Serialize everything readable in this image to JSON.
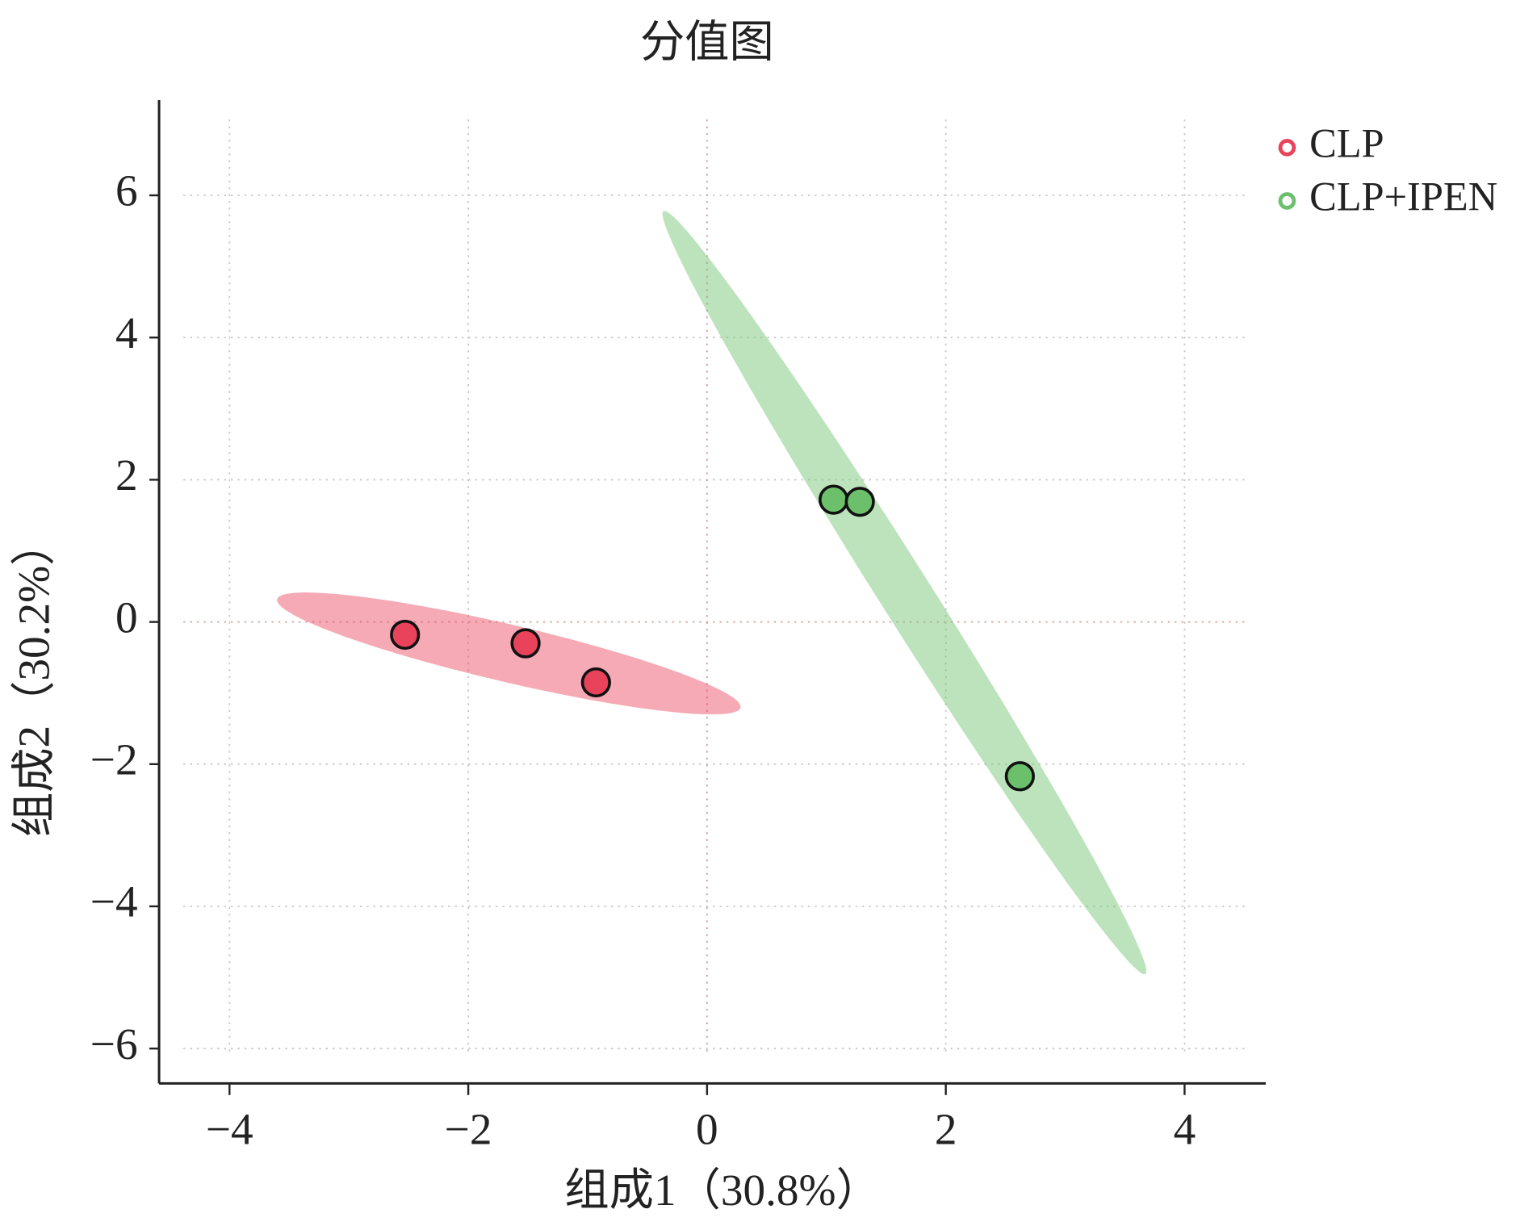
{
  "chart_data": {
    "type": "scatter",
    "title": "分值图",
    "xlabel": "组成1（30.8%）",
    "ylabel": "组成2（30.2%）",
    "xlim": [
      -4.59,
      4.68
    ],
    "ylim": [
      -6.49,
      7.34
    ],
    "xticks": [
      {
        "value": -4,
        "label": "−4"
      },
      {
        "value": -2,
        "label": "−2"
      },
      0,
      2,
      4
    ],
    "yticks": [
      {
        "value": -6,
        "label": "−6"
      },
      {
        "value": -4,
        "label": "−4"
      },
      {
        "value": -2,
        "label": "−2"
      },
      0,
      2,
      4,
      6
    ],
    "grid": true,
    "ellipse": true,
    "legend": "upper right",
    "series": [
      {
        "name": "CLP",
        "color": "#e8435a",
        "x": [
          -2.53,
          -1.52,
          -0.93
        ],
        "values": [
          -0.18,
          -0.3,
          -0.85
        ]
      },
      {
        "name": "CLP+IPEN",
        "color": "#6cc06c",
        "x": [
          1.06,
          1.28,
          2.62
        ],
        "values": [
          1.72,
          1.69,
          -2.17
        ]
      }
    ]
  }
}
